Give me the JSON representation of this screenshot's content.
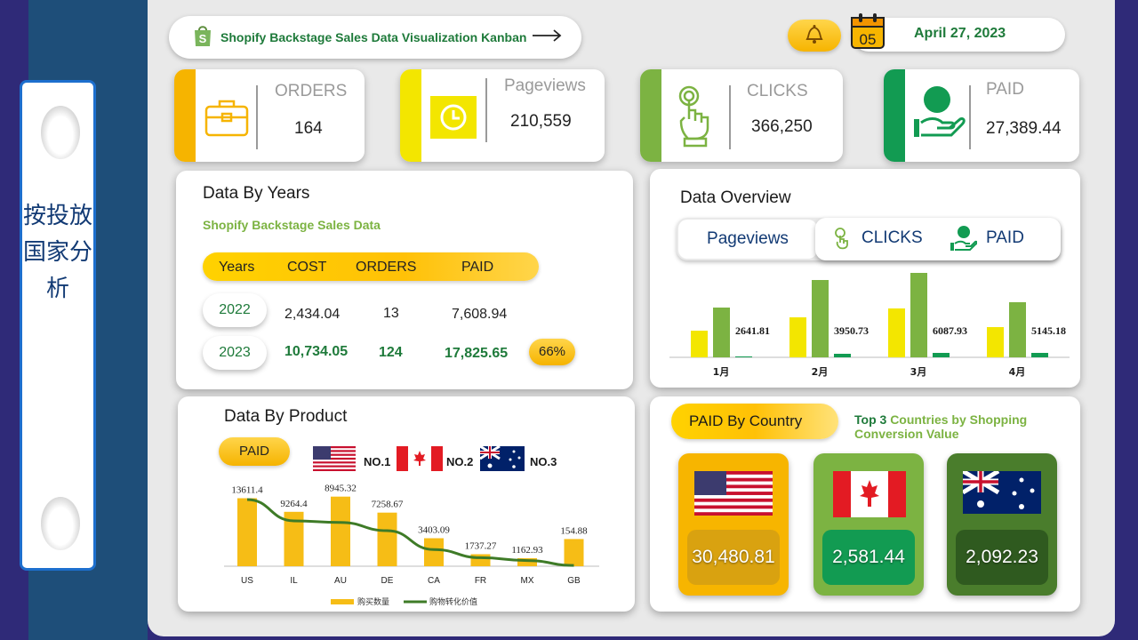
{
  "sidebar": {
    "title": "按投放国家分析"
  },
  "header": {
    "title": "Shopify Backstage Sales Data Visualization Kanban",
    "calendar_day": "05",
    "date": "April 27, 2023"
  },
  "kpis": [
    {
      "label": "ORDERS",
      "value": "164"
    },
    {
      "label": "Pageviews",
      "value": "210,559"
    },
    {
      "label": "CLICKS",
      "value": "366,250"
    },
    {
      "label": "PAID",
      "value": "27,389.44"
    }
  ],
  "years": {
    "title": "Data By Years",
    "subtitle": "Shopify Backstage Sales Data",
    "headers": [
      "Years",
      "COST",
      "ORDERS",
      "PAID"
    ],
    "rows": [
      {
        "year": "2022",
        "cost": "2,434.04",
        "orders": "13",
        "paid": "7,608.94"
      },
      {
        "year": "2023",
        "cost": "10,734.05",
        "orders": "124",
        "paid": "17,825.65"
      }
    ],
    "growth": "66%"
  },
  "overview": {
    "title": "Data Overview",
    "tabs": [
      "Pageviews",
      "CLICKS",
      "PAID"
    ],
    "months": [
      "1月",
      "2月",
      "3月",
      "4月"
    ],
    "labels": [
      "2641.81",
      "3950.73",
      "6087.93",
      "5145.18"
    ]
  },
  "product": {
    "title": "Data By Product",
    "chip": "PAID",
    "ranks": [
      "NO.1",
      "NO.2",
      "NO.3"
    ],
    "legend": [
      "购买数量",
      "购物转化价值"
    ]
  },
  "country": {
    "chip": "PAID By Country",
    "subtitle_prefix": "Top 3",
    "subtitle_rest": "Countries by Shopping Conversion Value",
    "values": [
      "30,480.81",
      "2,581.44",
      "2,092.23"
    ]
  },
  "chart_data": [
    {
      "type": "bar",
      "title": "Data Overview",
      "categories": [
        "1月",
        "2月",
        "3月",
        "4月"
      ],
      "series": [
        {
          "name": "Pageviews",
          "values": [
            30,
            45,
            55,
            34
          ]
        },
        {
          "name": "CLICKS",
          "values": [
            56,
            87,
            95,
            62
          ]
        },
        {
          "name": "PAID",
          "values": [
            2641.81,
            3950.73,
            6087.93,
            5145.18
          ],
          "scale": [
            1,
            4,
            5,
            5
          ]
        }
      ],
      "ylim": [
        0,
        100
      ]
    },
    {
      "type": "bar",
      "title": "Data By Product",
      "categories": [
        "US",
        "IL",
        "AU",
        "DE",
        "CA",
        "FR",
        "MX",
        "GB"
      ],
      "series": [
        {
          "name": "购买数量",
          "values": [
            85,
            68,
            87,
            67,
            35,
            15,
            10,
            34
          ]
        },
        {
          "name": "购物转化价值",
          "values": [
            13611.4,
            9264.4,
            8945.32,
            7258.67,
            3403.09,
            1737.27,
            1162.93,
            154.88
          ]
        }
      ],
      "ylim": [
        0,
        100
      ],
      "line_max": 13611.4
    }
  ]
}
